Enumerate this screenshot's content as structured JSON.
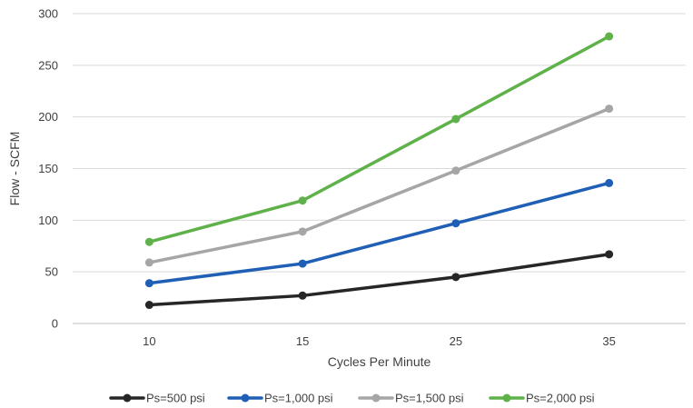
{
  "chart_data": {
    "type": "line",
    "title": "",
    "xlabel": "Cycles Per Minute",
    "ylabel": "Flow - SCFM",
    "categories": [
      "10",
      "15",
      "25",
      "35"
    ],
    "ylim": [
      0,
      300
    ],
    "yticks": [
      0,
      50,
      100,
      150,
      200,
      250,
      300
    ],
    "grid": true,
    "legend_position": "bottom",
    "series": [
      {
        "name": "Ps=500 psi",
        "color": "#262626",
        "values": [
          18,
          27,
          45,
          67
        ]
      },
      {
        "name": "Ps=1,000 psi",
        "color": "#1f5fb5",
        "values": [
          39,
          58,
          97,
          136
        ]
      },
      {
        "name": "Ps=1,500 psi",
        "color": "#a6a6a6",
        "values": [
          59,
          89,
          148,
          208
        ]
      },
      {
        "name": "Ps=2,000 psi",
        "color": "#5fb14a",
        "values": [
          79,
          119,
          198,
          278
        ]
      }
    ]
  }
}
